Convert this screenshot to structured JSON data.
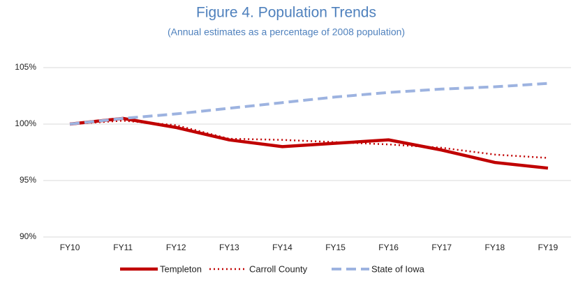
{
  "chart_data": {
    "type": "line",
    "title": "Figure 4.  Population Trends",
    "subtitle": "(Annual estimates as a percentage of 2008 population)",
    "categories": [
      "FY10",
      "FY11",
      "FY12",
      "FY13",
      "FY14",
      "FY15",
      "FY16",
      "FY17",
      "FY18",
      "FY19"
    ],
    "series": [
      {
        "name": "Templeton",
        "color": "#c00000",
        "style": "solid",
        "values": [
          100,
          100.5,
          99.7,
          98.6,
          98.0,
          98.3,
          98.6,
          97.7,
          96.6,
          96.1
        ]
      },
      {
        "name": "Carroll County",
        "color": "#c00000",
        "style": "dotted",
        "values": [
          100,
          100.3,
          99.9,
          98.7,
          98.6,
          98.4,
          98.2,
          97.9,
          97.3,
          97.0
        ]
      },
      {
        "name": "State of Iowa",
        "color": "#9db3e0",
        "style": "dashed",
        "values": [
          100,
          100.5,
          100.9,
          101.4,
          101.9,
          102.4,
          102.8,
          103.1,
          103.3,
          103.6
        ]
      }
    ],
    "ylim": [
      90,
      105
    ],
    "yticks": [
      {
        "value": 90,
        "label": "90%"
      },
      {
        "value": 95,
        "label": "95%"
      },
      {
        "value": 100,
        "label": "100%"
      },
      {
        "value": 105,
        "label": "105%"
      }
    ],
    "grid": true,
    "legend": "bottom"
  }
}
